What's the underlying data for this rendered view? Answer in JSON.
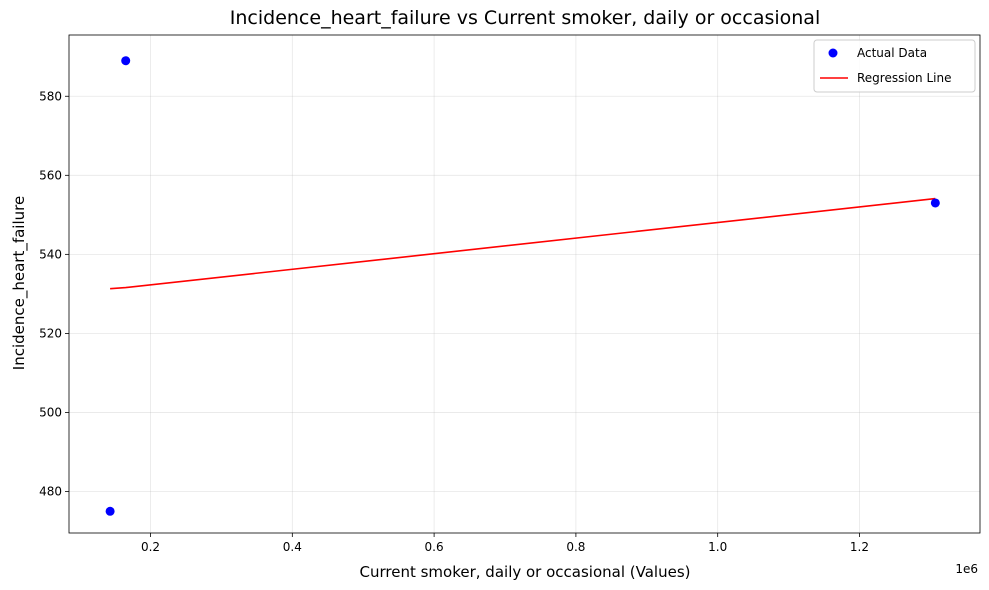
{
  "chart_data": {
    "type": "scatter",
    "title": "Incidence_heart_failure vs Current smoker, daily or occasional",
    "xlabel": "Current smoker, daily or occasional (Values)",
    "ylabel": "Incidence_heart_failure",
    "x_offset_label": "1e6",
    "xlim": [
      85000,
      1370000
    ],
    "ylim": [
      469.5,
      595.5
    ],
    "x_ticks": [
      200000,
      400000,
      600000,
      800000,
      1000000,
      1200000
    ],
    "x_tick_labels": [
      "0.2",
      "0.4",
      "0.6",
      "0.8",
      "1.0",
      "1.2"
    ],
    "y_ticks": [
      480,
      500,
      520,
      540,
      560,
      580
    ],
    "y_tick_labels": [
      "480",
      "500",
      "520",
      "540",
      "560",
      "580"
    ],
    "grid": true,
    "legend_position": "top-right",
    "series": [
      {
        "name": "Actual Data",
        "kind": "scatter",
        "color": "#0000ff",
        "points": [
          {
            "x": 143000,
            "y": 475
          },
          {
            "x": 165000,
            "y": 589
          },
          {
            "x": 1307000,
            "y": 553
          }
        ]
      },
      {
        "name": "Regression Line",
        "kind": "line",
        "color": "#ff0000",
        "points": [
          {
            "x": 143000,
            "y": 531.3
          },
          {
            "x": 165000,
            "y": 531.6
          },
          {
            "x": 1307000,
            "y": 554.1
          }
        ]
      }
    ]
  }
}
